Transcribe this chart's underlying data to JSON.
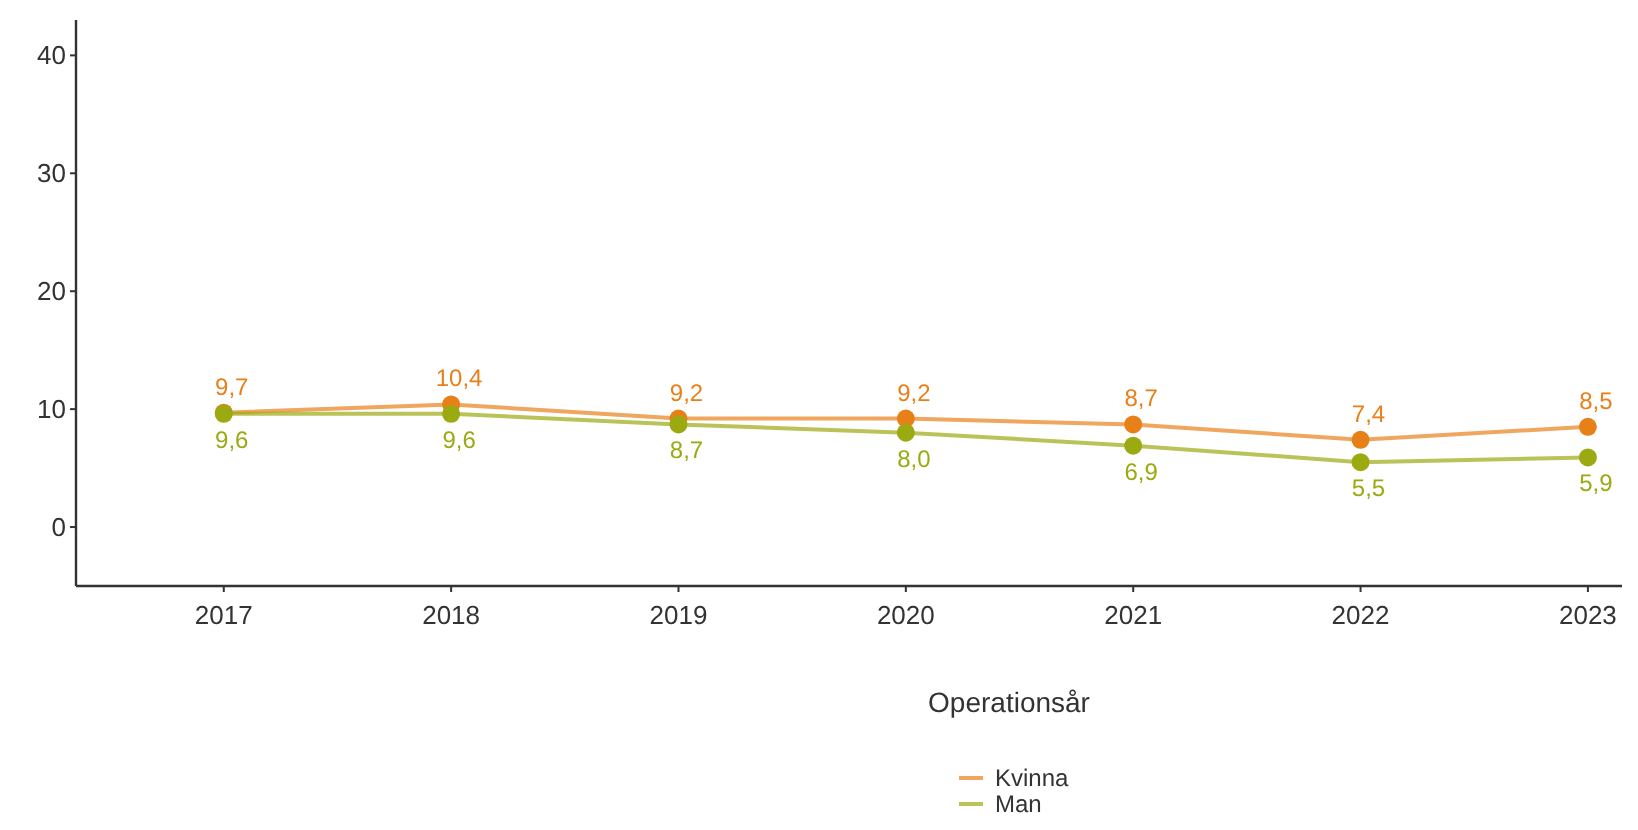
{
  "chart_data": {
    "type": "line",
    "xlabel": "Operationsår",
    "x": [
      2017,
      2018,
      2019,
      2020,
      2021,
      2022,
      2023
    ],
    "series": [
      {
        "name": "Kvinna",
        "color": "#e8801a",
        "values": [
          9.7,
          10.4,
          9.2,
          9.2,
          8.7,
          7.4,
          8.5
        ],
        "value_labels": [
          "9,7",
          "10,4",
          "9,2",
          "9,2",
          "8,7",
          "7,4",
          "8,5"
        ]
      },
      {
        "name": "Man",
        "color": "#9caa12",
        "values": [
          9.6,
          9.6,
          8.7,
          8.0,
          6.9,
          5.5,
          5.9
        ],
        "value_labels": [
          "9,6",
          "9,6",
          "8,7",
          "8,0",
          "6,9",
          "5,5",
          "5,9"
        ]
      }
    ],
    "xlim": [
      2016.35,
      2023.15
    ],
    "xticks": [
      2017,
      2018,
      2019,
      2020,
      2021,
      2022,
      2023
    ],
    "ylim": [
      -5,
      43
    ],
    "yticks": [
      0,
      10,
      20,
      30,
      40
    ],
    "grid": false,
    "legend": "bottom",
    "marker": "circle",
    "line_style": "solid"
  }
}
